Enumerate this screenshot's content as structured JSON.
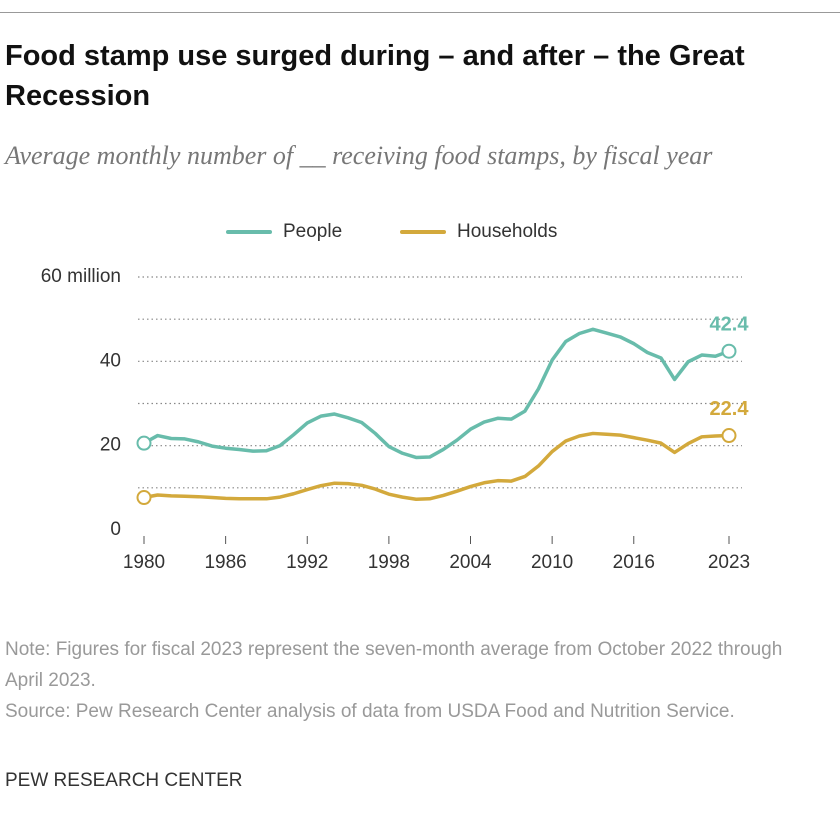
{
  "chart_data": {
    "type": "line",
    "title": "Food stamp use surged during – and after – the Great Recession",
    "subtitle": "Average monthly number of __ receiving food stamps, by fiscal year",
    "x": [
      1980,
      1981,
      1982,
      1983,
      1984,
      1985,
      1986,
      1987,
      1988,
      1989,
      1990,
      1991,
      1992,
      1993,
      1994,
      1995,
      1996,
      1997,
      1998,
      1999,
      2000,
      2001,
      2002,
      2003,
      2004,
      2005,
      2006,
      2007,
      2008,
      2009,
      2010,
      2011,
      2012,
      2013,
      2014,
      2015,
      2016,
      2017,
      2018,
      2019,
      2020,
      2021,
      2022,
      2023
    ],
    "series": [
      {
        "name": "People",
        "color": "#68bcab",
        "values": [
          20.6,
          22.4,
          21.7,
          21.6,
          20.9,
          19.9,
          19.4,
          19.1,
          18.7,
          18.8,
          20.0,
          22.6,
          25.4,
          27.0,
          27.5,
          26.6,
          25.5,
          22.9,
          19.8,
          18.2,
          17.2,
          17.3,
          19.1,
          21.3,
          23.9,
          25.6,
          26.5,
          26.3,
          28.2,
          33.5,
          40.3,
          44.7,
          46.6,
          47.6,
          46.7,
          45.8,
          44.2,
          42.1,
          40.8,
          35.7,
          39.9,
          41.5,
          41.2,
          42.4
        ]
      },
      {
        "name": "Households",
        "color": "#d3a93c",
        "values": [
          7.7,
          8.3,
          8.1,
          8.0,
          7.9,
          7.7,
          7.5,
          7.4,
          7.4,
          7.4,
          7.8,
          8.6,
          9.6,
          10.5,
          11.1,
          11.0,
          10.6,
          9.7,
          8.5,
          7.8,
          7.3,
          7.4,
          8.2,
          9.2,
          10.3,
          11.2,
          11.7,
          11.6,
          12.7,
          15.2,
          18.6,
          21.1,
          22.3,
          22.9,
          22.7,
          22.5,
          21.9,
          21.3,
          20.6,
          18.4,
          20.5,
          22.1,
          22.3,
          22.4
        ]
      }
    ],
    "xlim": [
      1980,
      2023
    ],
    "xticks": [
      1980,
      1986,
      1992,
      1998,
      2004,
      2010,
      2016,
      2023
    ],
    "ylim": [
      0,
      60
    ],
    "yticks": [
      0,
      {
        "value": 10,
        "label": null
      },
      20,
      {
        "value": 30,
        "label": null
      },
      40,
      {
        "value": 50,
        "label": null
      },
      {
        "value": 60,
        "label": "60 million"
      }
    ],
    "grid": true,
    "legend": "top",
    "notes": [
      "Note: Figures for fiscal 2023 represent the seven-month average from October 2022 through April 2023.",
      "Source: Pew Research Center analysis of data from USDA Food and Nutrition Service."
    ],
    "source_label": "PEW RESEARCH CENTER"
  }
}
